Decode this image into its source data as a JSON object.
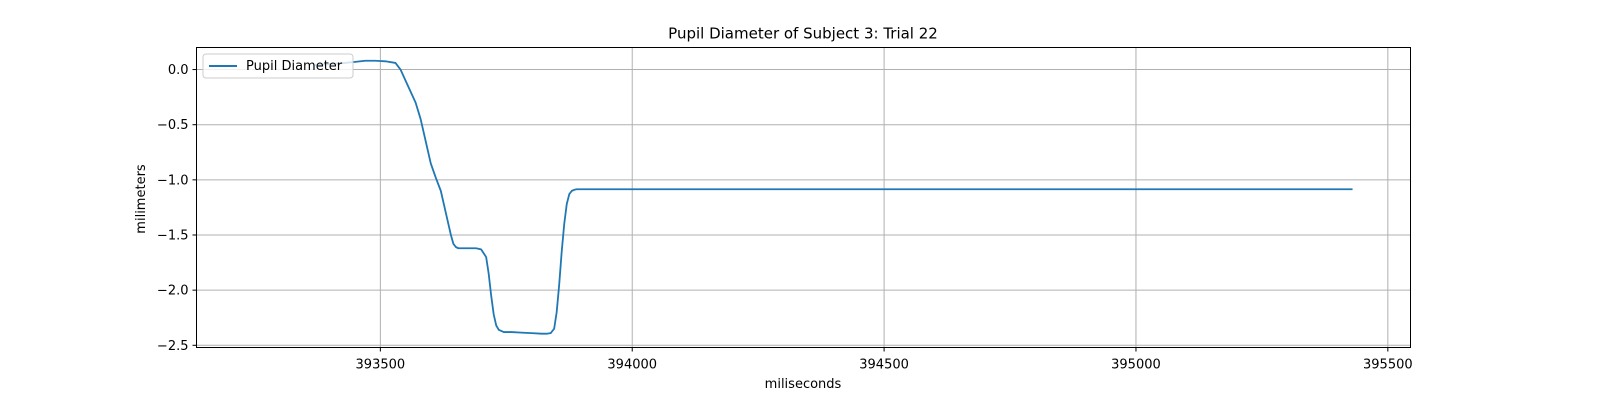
{
  "chart_data": {
    "type": "line",
    "title": "Pupil Diameter of Subject 3: Trial 22",
    "xlabel": "miliseconds",
    "ylabel": "milimeters",
    "xlim": [
      393135,
      395545
    ],
    "ylim": [
      -2.52,
      0.2
    ],
    "xticks": [
      393500,
      394000,
      394500,
      395000,
      395500
    ],
    "yticks": [
      0.0,
      -0.5,
      -1.0,
      -1.5,
      -2.0,
      -2.5
    ],
    "xtick_labels": [
      "393500",
      "394000",
      "394500",
      "395000",
      "395500"
    ],
    "ytick_labels": [
      "0.0",
      "−0.5",
      "−1.0",
      "−1.5",
      "−2.0",
      "−2.5"
    ],
    "grid": true,
    "legend": {
      "position": "top-left"
    },
    "colors": {
      "series": "#1f77b4",
      "grid": "#b0b0b0"
    },
    "series": [
      {
        "name": "Pupil Diameter",
        "x": [
          393370,
          393400,
          393430,
          393450,
          393470,
          393490,
          393510,
          393530,
          393540,
          393550,
          393560,
          393570,
          393580,
          393590,
          393600,
          393610,
          393620,
          393630,
          393640,
          393645,
          393650,
          393655,
          393660,
          393665,
          393670,
          393680,
          393690,
          393700,
          393710,
          393715,
          393720,
          393725,
          393730,
          393735,
          393740,
          393745,
          393750,
          393760,
          393780,
          393800,
          393820,
          393830,
          393838,
          393845,
          393850,
          393855,
          393860,
          393865,
          393870,
          393875,
          393880,
          393885,
          393890,
          393895,
          393900,
          393950,
          394500,
          395000,
          395430
        ],
        "y": [
          0.04,
          0.05,
          0.06,
          0.07,
          0.08,
          0.08,
          0.075,
          0.06,
          0.0,
          -0.1,
          -0.2,
          -0.3,
          -0.45,
          -0.65,
          -0.85,
          -0.98,
          -1.1,
          -1.3,
          -1.5,
          -1.58,
          -1.61,
          -1.62,
          -1.62,
          -1.62,
          -1.62,
          -1.62,
          -1.62,
          -1.63,
          -1.7,
          -1.85,
          -2.05,
          -2.22,
          -2.32,
          -2.36,
          -2.37,
          -2.38,
          -2.38,
          -2.38,
          -2.385,
          -2.39,
          -2.395,
          -2.395,
          -2.39,
          -2.35,
          -2.2,
          -1.95,
          -1.65,
          -1.4,
          -1.22,
          -1.13,
          -1.1,
          -1.09,
          -1.085,
          -1.085,
          -1.085,
          -1.085,
          -1.085,
          -1.085,
          -1.085
        ]
      }
    ]
  }
}
